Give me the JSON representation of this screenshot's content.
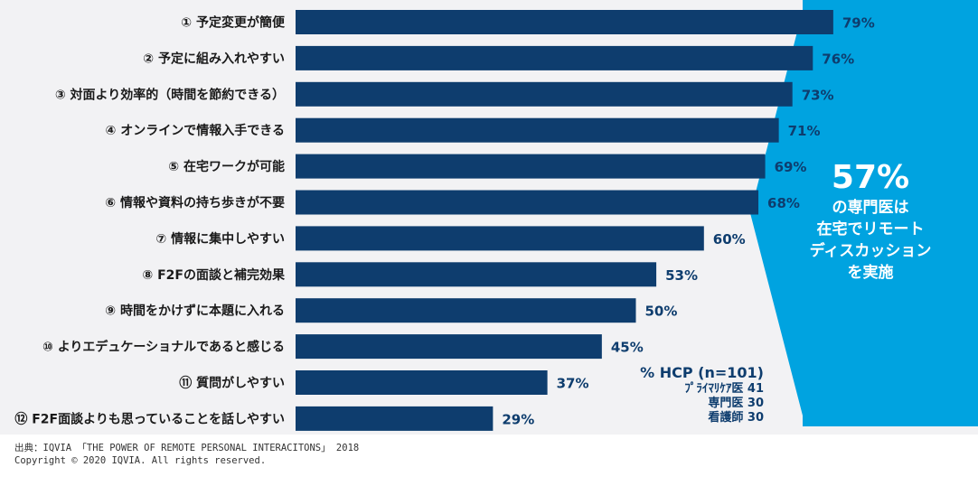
{
  "chart_data": {
    "type": "bar",
    "orientation": "horizontal",
    "categories": [
      "① 予定変更が簡便",
      "② 予定に組み入れやすい",
      "③ 対面より効率的（時間を節約できる）",
      "④ オンラインで情報入手できる",
      "⑤ 在宅ワークが可能",
      "⑥ 情報や資料の持ち歩きが不要",
      "⑦ 情報に集中しやすい",
      "⑧ F2Fの面談と補完効果",
      "⑨ 時間をかけずに本題に入れる",
      "⑩ よりエデュケーショナルであると感じる",
      "⑪ 質問がしやすい",
      "⑫ F2F面談よりも思っていることを話しやすい"
    ],
    "values": [
      79,
      76,
      73,
      71,
      69,
      68,
      60,
      53,
      50,
      45,
      37,
      29
    ],
    "value_labels": [
      "79%",
      "76%",
      "73%",
      "71%",
      "69%",
      "68%",
      "60%",
      "53%",
      "50%",
      "45%",
      "37%",
      "29%"
    ],
    "xlim": [
      0,
      100
    ],
    "bar_color": "#0e3d6e"
  },
  "callout": {
    "percent": "57%",
    "text": "の専門医は\n在宅でリモート\nディスカッション\nを実施",
    "color": "#00a3e0"
  },
  "sample": {
    "title": "% HCP (n=101)",
    "lines": [
      "ﾌﾟﾗｲﾏﾘｹｱ医 41",
      "専門医 30",
      "看護師 30"
    ]
  },
  "footer": {
    "source": "出典：IQVIA 「THE POWER OF REMOTE PERSONAL INTERACITONS」 2018",
    "copyright": "Copyright © 2020 IQVIA. All rights reserved."
  }
}
